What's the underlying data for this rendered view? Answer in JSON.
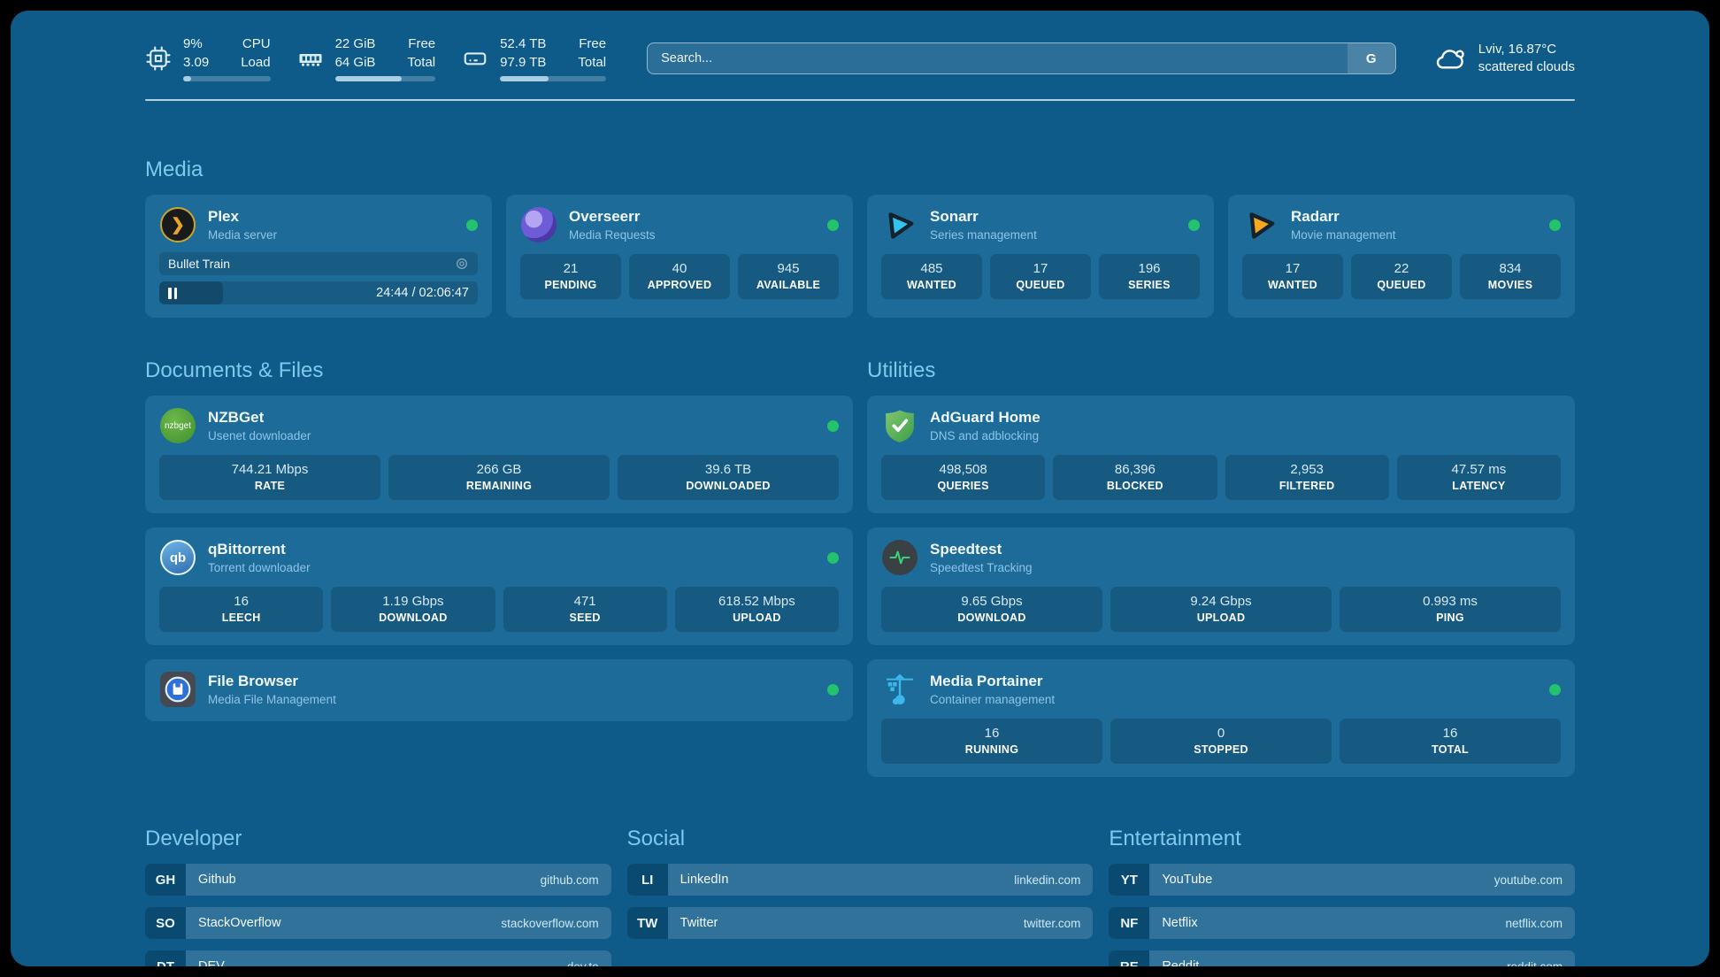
{
  "colors": {
    "background": "#0e5b89",
    "card": "#1d6b99",
    "heading_accent": "#7fc9ef",
    "status_online": "#22c36c",
    "progress_fill": "#a9cfe2"
  },
  "header": {
    "stats": [
      {
        "icon": "cpu-chip-icon",
        "value_top": "9%",
        "value_bottom": "3.09",
        "label_top": "CPU",
        "label_bottom": "Load",
        "progress_pct": 9
      },
      {
        "icon": "memory-icon",
        "value_top": "22 GiB",
        "value_bottom": "64 GiB",
        "label_top": "Free",
        "label_bottom": "Total",
        "progress_pct": 66
      },
      {
        "icon": "hard-drive-icon",
        "value_top": "52.4 TB",
        "value_bottom": "97.9 TB",
        "label_top": "Free",
        "label_bottom": "Total",
        "progress_pct": 46
      }
    ],
    "search": {
      "placeholder": "Search...",
      "engine_label": "G"
    },
    "weather": {
      "icon": "cloud-icon",
      "location_temp": "Lviv, 16.87°C",
      "condition": "scattered clouds"
    }
  },
  "media": {
    "title": "Media",
    "plex": {
      "icon": "plex-icon",
      "name": "Plex",
      "subtitle": "Media server",
      "status": "online",
      "now_playing": {
        "title": "Bullet Train",
        "time": "24:44 / 02:06:47",
        "progress_pct": 20
      }
    },
    "overseerr": {
      "icon": "overseerr-icon",
      "name": "Overseerr",
      "subtitle": "Media Requests",
      "status": "online",
      "stats": [
        {
          "value": "21",
          "label": "PENDING"
        },
        {
          "value": "40",
          "label": "APPROVED"
        },
        {
          "value": "945",
          "label": "AVAILABLE"
        }
      ]
    },
    "sonarr": {
      "icon": "sonarr-icon",
      "name": "Sonarr",
      "subtitle": "Series management",
      "status": "online",
      "stats": [
        {
          "value": "485",
          "label": "WANTED"
        },
        {
          "value": "17",
          "label": "QUEUED"
        },
        {
          "value": "196",
          "label": "SERIES"
        }
      ]
    },
    "radarr": {
      "icon": "radarr-icon",
      "name": "Radarr",
      "subtitle": "Movie management",
      "status": "online",
      "stats": [
        {
          "value": "17",
          "label": "WANTED"
        },
        {
          "value": "22",
          "label": "QUEUED"
        },
        {
          "value": "834",
          "label": "MOVIES"
        }
      ]
    }
  },
  "documents": {
    "title": "Documents & Files",
    "nzbget": {
      "icon": "nzbget-icon",
      "name": "NZBGet",
      "subtitle": "Usenet downloader",
      "status": "online",
      "icon_text": "nzbget",
      "stats": [
        {
          "value": "744.21 Mbps",
          "label": "RATE"
        },
        {
          "value": "266 GB",
          "label": "REMAINING"
        },
        {
          "value": "39.6 TB",
          "label": "DOWNLOADED"
        }
      ]
    },
    "qbittorrent": {
      "icon": "qbittorrent-icon",
      "name": "qBittorrent",
      "subtitle": "Torrent downloader",
      "status": "online",
      "icon_text": "qb",
      "stats": [
        {
          "value": "16",
          "label": "LEECH"
        },
        {
          "value": "1.19 Gbps",
          "label": "DOWNLOAD"
        },
        {
          "value": "471",
          "label": "SEED"
        },
        {
          "value": "618.52 Mbps",
          "label": "UPLOAD"
        }
      ]
    },
    "filebrowser": {
      "icon": "filebrowser-icon",
      "name": "File Browser",
      "subtitle": "Media File Management",
      "status": "online"
    }
  },
  "utilities": {
    "title": "Utilities",
    "adguard": {
      "icon": "adguard-shield-icon",
      "name": "AdGuard Home",
      "subtitle": "DNS and adblocking",
      "stats": [
        {
          "value": "498,508",
          "label": "QUERIES"
        },
        {
          "value": "86,396",
          "label": "BLOCKED"
        },
        {
          "value": "2,953",
          "label": "FILTERED"
        },
        {
          "value": "47.57 ms",
          "label": "LATENCY"
        }
      ]
    },
    "speedtest": {
      "icon": "speedtest-pulse-icon",
      "name": "Speedtest",
      "subtitle": "Speedtest Tracking",
      "stats": [
        {
          "value": "9.65 Gbps",
          "label": "DOWNLOAD"
        },
        {
          "value": "9.24 Gbps",
          "label": "UPLOAD"
        },
        {
          "value": "0.993 ms",
          "label": "PING"
        }
      ]
    },
    "portainer": {
      "icon": "portainer-crane-icon",
      "name": "Media Portainer",
      "subtitle": "Container management",
      "status": "online",
      "stats": [
        {
          "value": "16",
          "label": "RUNNING"
        },
        {
          "value": "0",
          "label": "STOPPED"
        },
        {
          "value": "16",
          "label": "TOTAL"
        }
      ]
    }
  },
  "bookmarks": {
    "developer": {
      "title": "Developer",
      "items": [
        {
          "abbr": "GH",
          "name": "Github",
          "url": "github.com"
        },
        {
          "abbr": "SO",
          "name": "StackOverflow",
          "url": "stackoverflow.com"
        },
        {
          "abbr": "DT",
          "name": "DEV",
          "url": "dev.to"
        }
      ]
    },
    "social": {
      "title": "Social",
      "items": [
        {
          "abbr": "LI",
          "name": "LinkedIn",
          "url": "linkedin.com"
        },
        {
          "abbr": "TW",
          "name": "Twitter",
          "url": "twitter.com"
        }
      ]
    },
    "entertainment": {
      "title": "Entertainment",
      "items": [
        {
          "abbr": "YT",
          "name": "YouTube",
          "url": "youtube.com"
        },
        {
          "abbr": "NF",
          "name": "Netflix",
          "url": "netflix.com"
        },
        {
          "abbr": "RE",
          "name": "Reddit",
          "url": "reddit.com"
        }
      ]
    }
  }
}
